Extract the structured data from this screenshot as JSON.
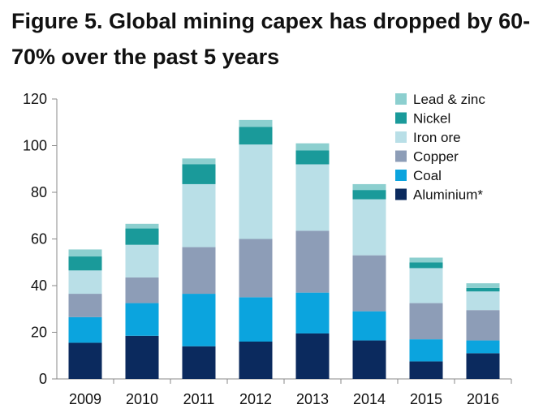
{
  "title": "Figure 5. Global mining capex has dropped by 60-70% over the past 5 years",
  "chart_data": {
    "type": "bar",
    "stacked": true,
    "categories": [
      "2009",
      "2010",
      "2011",
      "2012",
      "2013",
      "2014",
      "2015",
      "2016"
    ],
    "ylim": [
      0,
      120
    ],
    "yticks": [
      0,
      20,
      40,
      60,
      80,
      100,
      120
    ],
    "grid": false,
    "legend_position": "top-right",
    "series": [
      {
        "name": "Aluminium*",
        "color": "#0b2a5e",
        "values": [
          15.5,
          18.5,
          14,
          16,
          19.5,
          16.5,
          7.5,
          11
        ]
      },
      {
        "name": "Coal",
        "color": "#0ba4de",
        "values": [
          11,
          14,
          22.5,
          19,
          17.5,
          12.5,
          9.5,
          5.5
        ]
      },
      {
        "name": "Copper",
        "color": "#8d9db7",
        "values": [
          10,
          11,
          20,
          25,
          26.5,
          24,
          15.5,
          13
        ]
      },
      {
        "name": "Iron ore",
        "color": "#b9dfe7",
        "values": [
          10,
          14,
          27,
          40.5,
          28.5,
          24,
          15,
          8
        ]
      },
      {
        "name": "Nickel",
        "color": "#1a9a9a",
        "values": [
          6,
          7,
          8.5,
          7.5,
          6,
          4,
          2.5,
          1.5
        ]
      },
      {
        "name": "Lead & zinc",
        "color": "#8ccfcf",
        "values": [
          3,
          2,
          2.5,
          3,
          3,
          2.5,
          2,
          2
        ]
      }
    ]
  }
}
